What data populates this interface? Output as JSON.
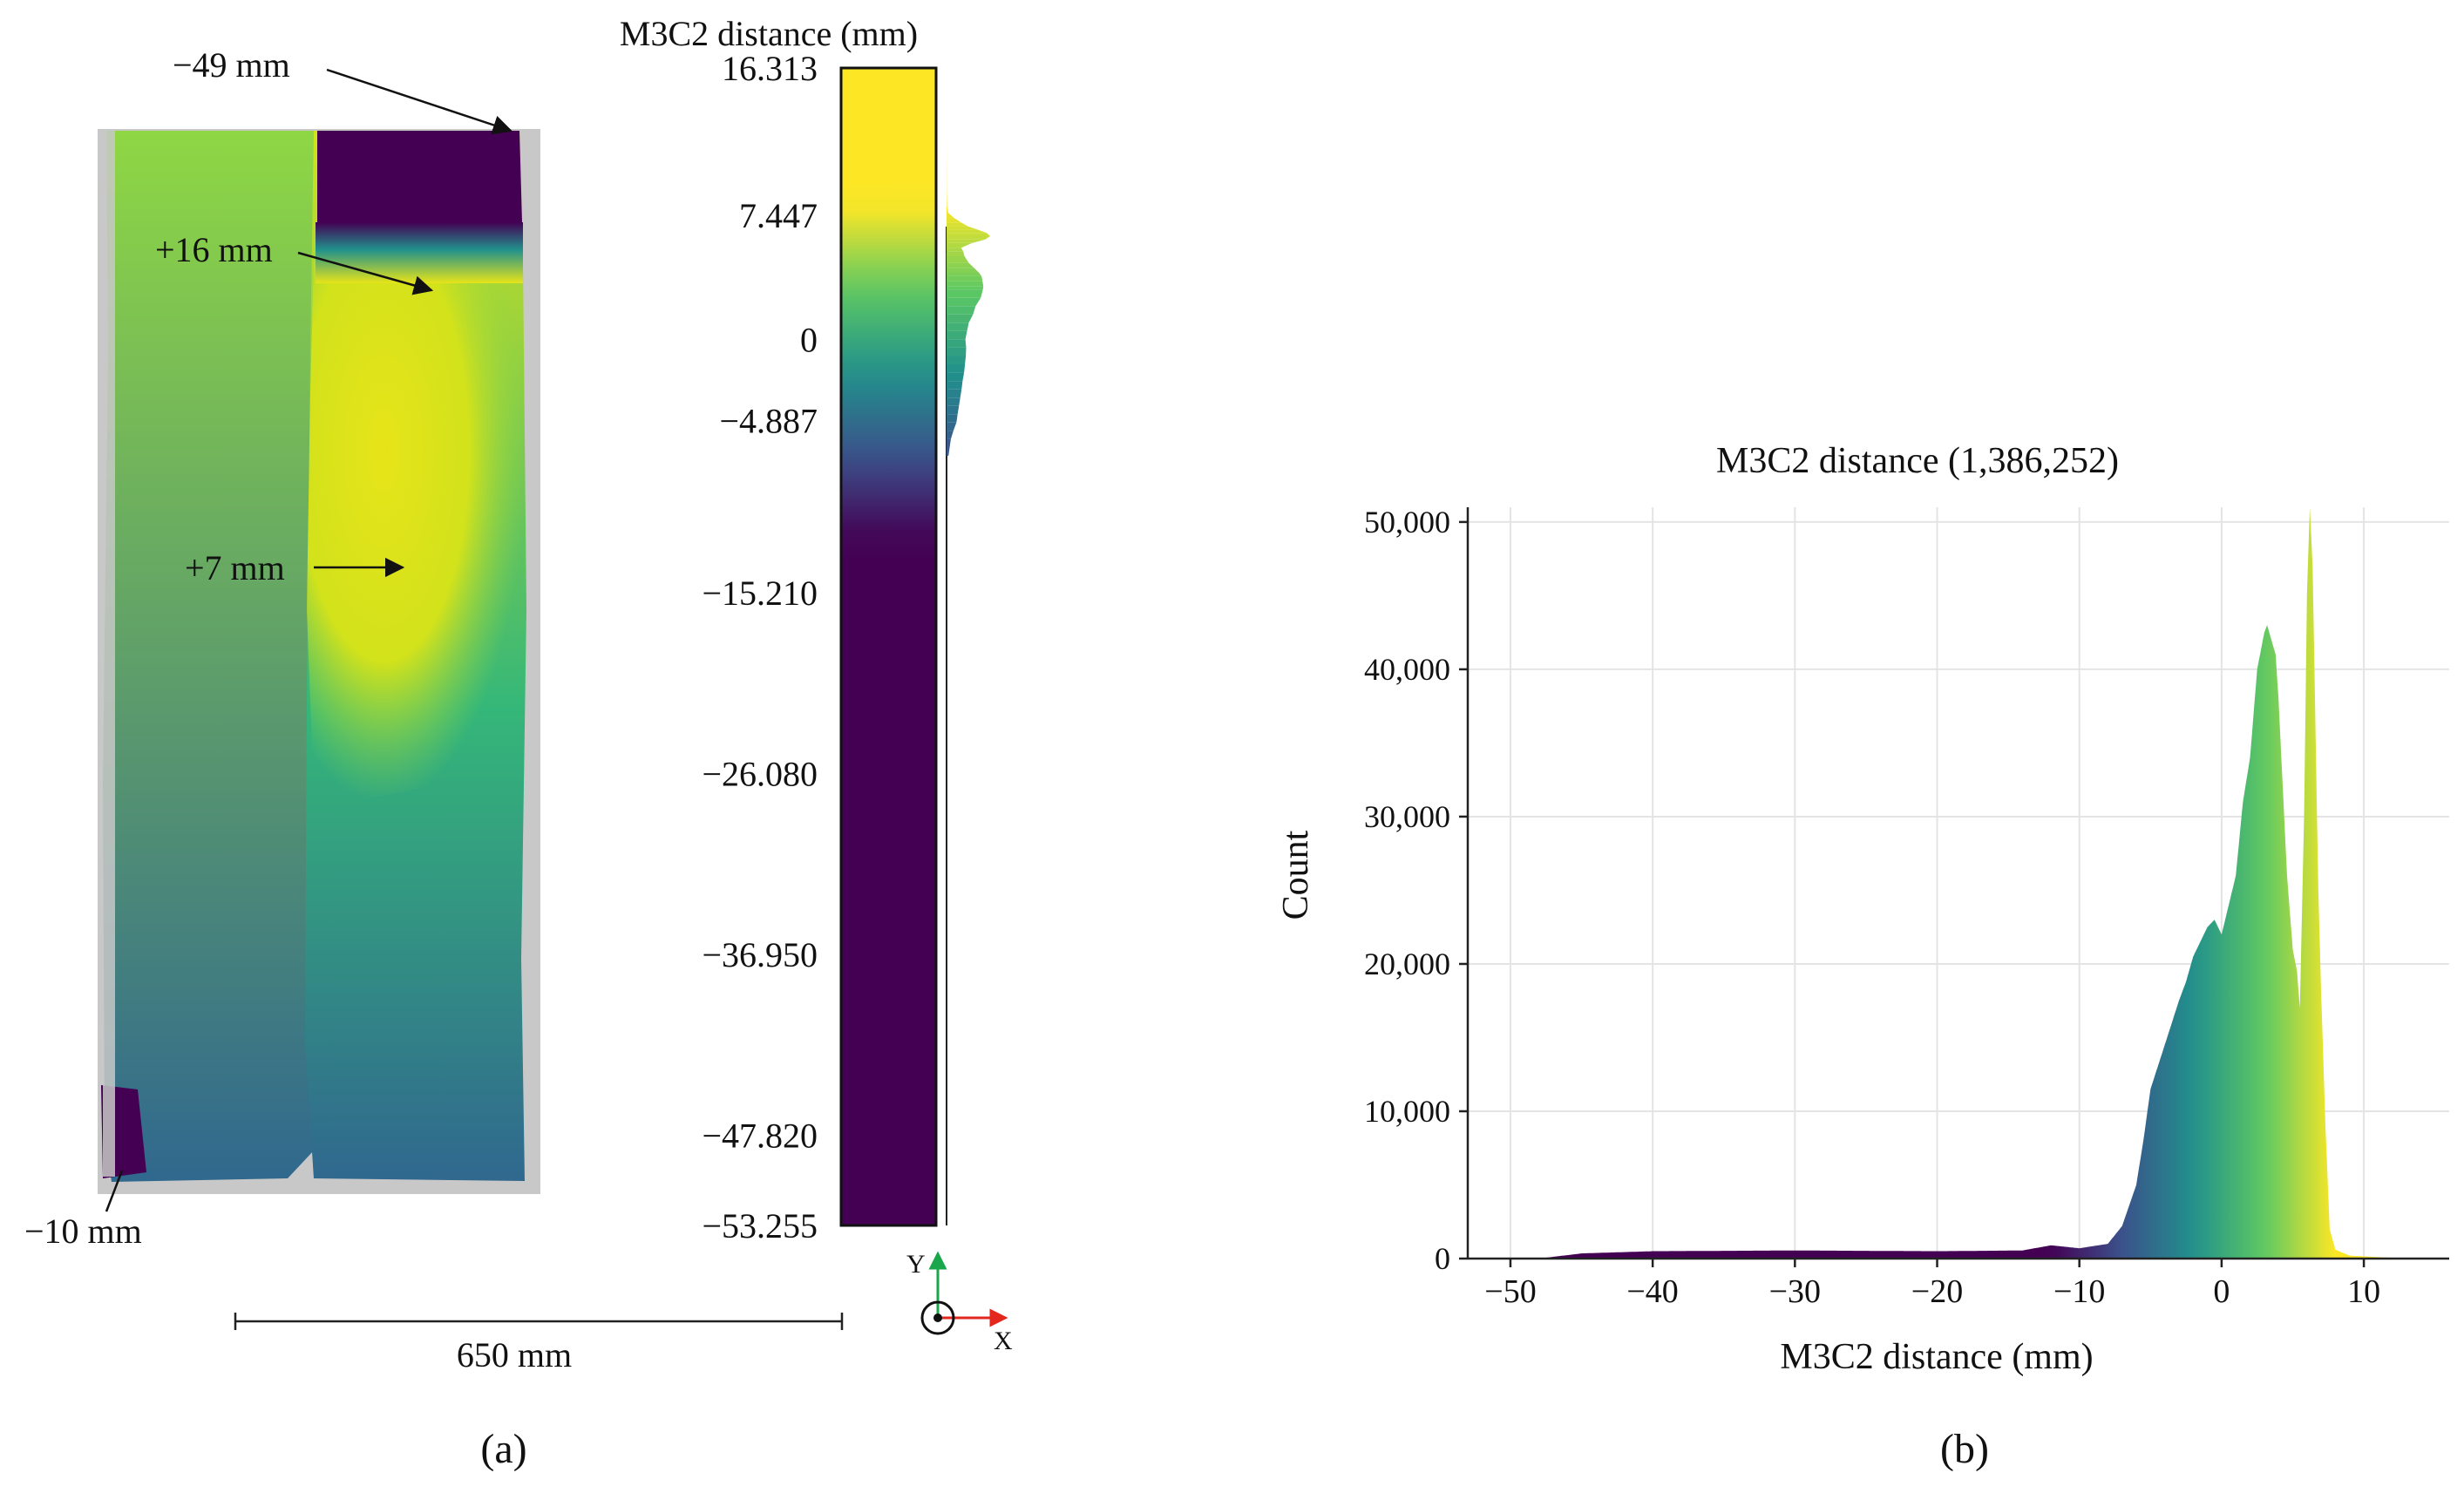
{
  "panel_a": {
    "caption": "(a)",
    "callouts": {
      "top": "−49 mm",
      "edge": "+16 mm",
      "center": "+7 mm",
      "bottom": "−10 mm"
    },
    "scalebar_label": "650 mm",
    "axes_icon": {
      "y": "Y",
      "x": "X",
      "y_color": "#1aa64a",
      "x_color": "#e3271e"
    },
    "colorbar": {
      "title": "M3C2 distance (mm)",
      "min": -53.255,
      "max": 16.313,
      "tick_values": [
        16.313,
        7.447,
        0,
        -4.887,
        -15.21,
        -26.08,
        -36.95,
        -47.82,
        -53.255
      ],
      "tick_labels": [
        "16.313",
        "7.447",
        "0",
        "−4.887",
        "−15.210",
        "−26.080",
        "−36.950",
        "−47.820",
        "−53.255"
      ],
      "colormap": [
        "#440154",
        "#3b528b",
        "#21918c",
        "#5ec962",
        "#fde725"
      ],
      "color_range": [
        -12,
        8
      ]
    },
    "scan_colors": [
      "#440154",
      "#30688e",
      "#21918c",
      "#35b779",
      "#8fd744",
      "#d2e21b",
      "#e7e419",
      "#c8c8c8"
    ]
  },
  "panel_b": {
    "caption": "(b)"
  },
  "chart_data": {
    "type": "bar",
    "title": "M3C2 distance (1,386,252)",
    "xlabel": "M3C2 distance (mm)",
    "ylabel": "Count",
    "xlim": [
      -53,
      16
    ],
    "ylim": [
      0,
      51000
    ],
    "x_ticks": [
      -50,
      -40,
      -30,
      -20,
      -10,
      0,
      10
    ],
    "x_tick_labels": [
      "−50",
      "−40",
      "−30",
      "−20",
      "−10",
      "0",
      "10"
    ],
    "y_ticks": [
      0,
      10000,
      20000,
      30000,
      40000,
      50000
    ],
    "y_tick_labels": [
      "0",
      "10,000",
      "20,000",
      "30,000",
      "40,000",
      "50,000"
    ],
    "grid": true,
    "bin_width": 0.1,
    "profile_x": [
      -53,
      -48,
      -45,
      -40,
      -30,
      -20,
      -14,
      -12,
      -10,
      -8,
      -7,
      -6,
      -5.5,
      -5,
      -4.5,
      -4,
      -3.5,
      -3,
      -2.5,
      -2,
      -1.5,
      -1,
      -0.5,
      0,
      0.5,
      1,
      1.5,
      2,
      2.5,
      3,
      3.2,
      3.5,
      3.8,
      4,
      4.3,
      4.6,
      5,
      5.3,
      5.5,
      5.8,
      6,
      6.2,
      6.4,
      6.6,
      6.8,
      7,
      7.3,
      7.6,
      8,
      9,
      12,
      16
    ],
    "profile_y": [
      0,
      0,
      350,
      500,
      550,
      500,
      550,
      900,
      700,
      1000,
      2200,
      5000,
      8000,
      11500,
      13000,
      14500,
      16000,
      17500,
      18800,
      20500,
      21500,
      22500,
      23000,
      22000,
      24000,
      26000,
      31000,
      34000,
      40000,
      42500,
      43000,
      42000,
      41000,
      38000,
      32000,
      26000,
      21000,
      19500,
      17000,
      30000,
      45000,
      51000,
      47000,
      36000,
      25000,
      18000,
      9000,
      2000,
      600,
      200,
      50,
      0
    ]
  }
}
